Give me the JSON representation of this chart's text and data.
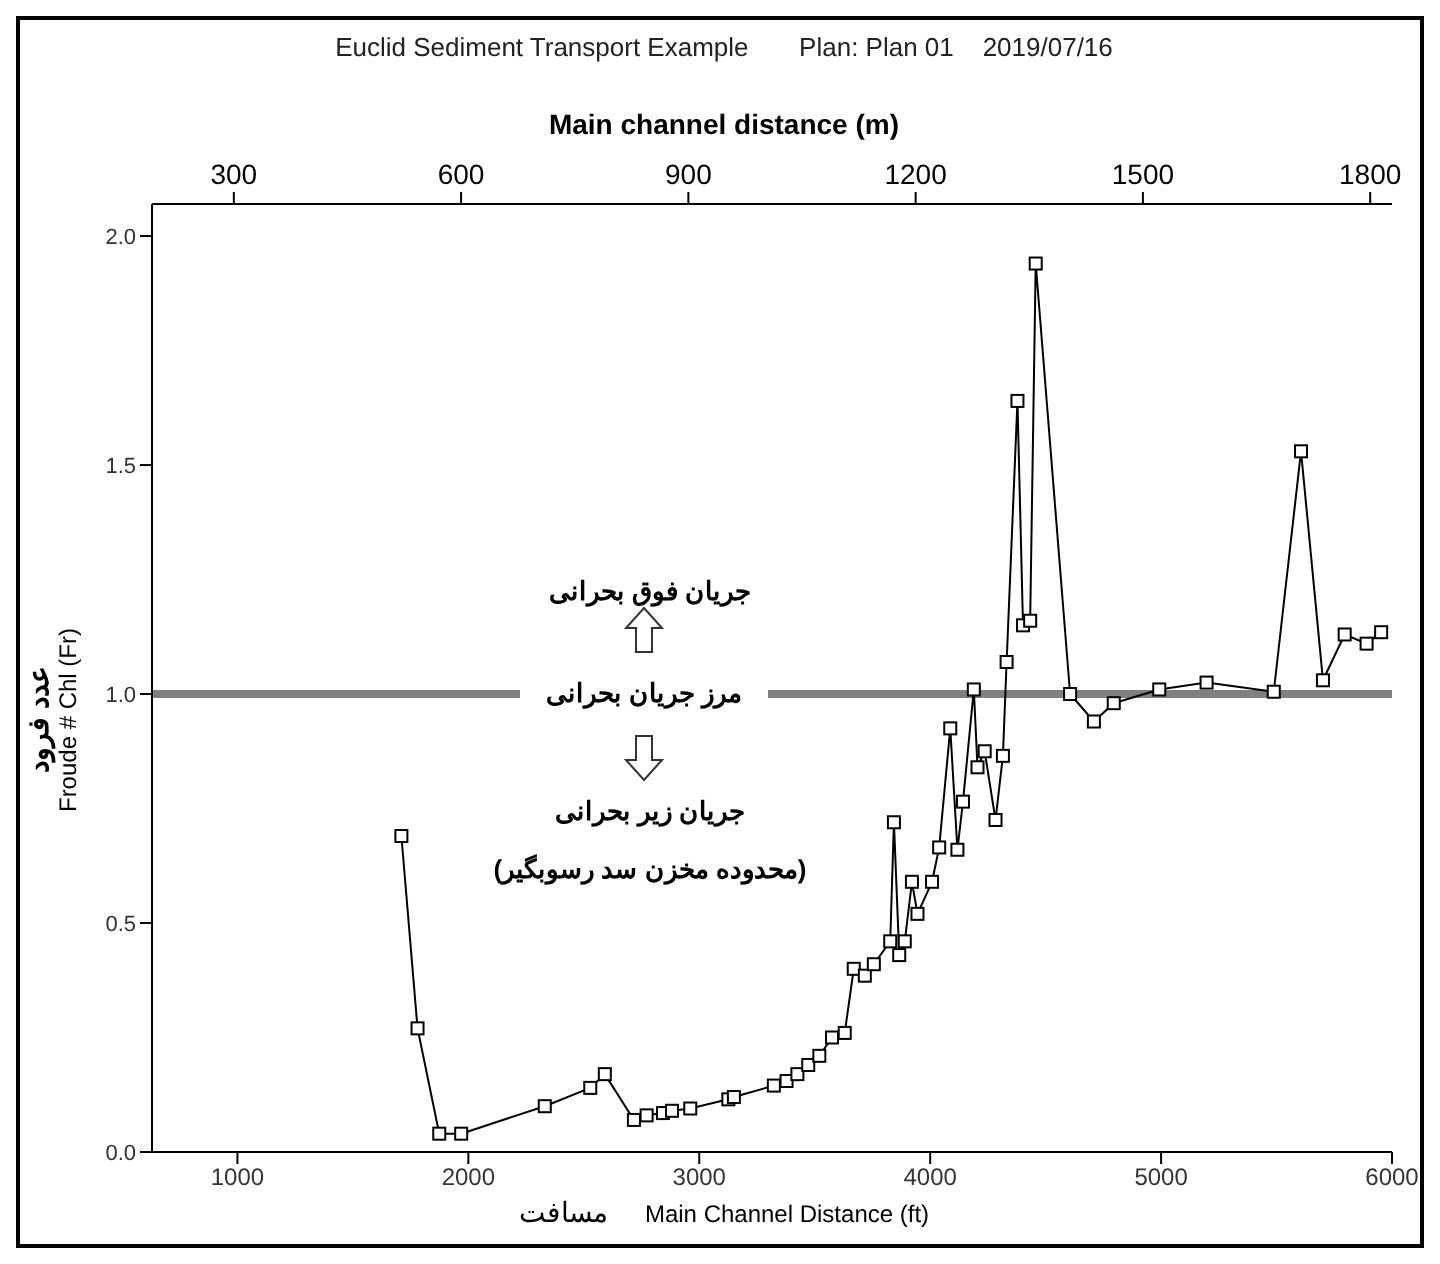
{
  "chart_data": {
    "type": "line",
    "title": "Euclid Sediment Transport Example",
    "subtitle": "Plan: Plan 01    2019/07/16",
    "xlabel": "Main Channel Distance (ft)",
    "ylabel": "Froude # Chl (Fr)",
    "x2label": "Main channel distance (m)",
    "annotations": [
      "جریان فوق بحرانی",
      "جریان زیر بحرانی",
      "(محدوده مخزن سد رسوبگیر)",
      "عدد فرود",
      "مسافت"
    ],
    "x": [
      1710,
      1780,
      1874,
      1969,
      2331,
      2528,
      2591,
      2717,
      2772,
      2843,
      2882,
      2961,
      3126,
      3150,
      3323,
      3378,
      3425,
      3472,
      3520,
      3575,
      3630,
      3669,
      3717,
      3756,
      3827,
      3843,
      3866,
      3890,
      3921,
      3945,
      4008,
      4039,
      4087,
      4118,
      4142,
      4189,
      4205,
      4236,
      4283,
      4315,
      4331,
      4378,
      4402,
      4433,
      4457,
      4606,
      4709,
      4795,
      4992,
      5197,
      5488,
      5606,
      5701,
      5795,
      5890,
      5953
    ],
    "series": [
      {
        "color": "#000000",
        "values": [
          0.69,
          0.27,
          0.04,
          0.04,
          0.1,
          0.14,
          0.17,
          0.07,
          0.08,
          0.085,
          0.09,
          0.095,
          0.115,
          0.12,
          0.145,
          0.155,
          0.17,
          0.19,
          0.21,
          0.25,
          0.26,
          0.4,
          0.385,
          0.41,
          0.46,
          0.72,
          0.43,
          0.46,
          0.59,
          0.52,
          0.59,
          0.665,
          0.925,
          0.66,
          0.765,
          1.01,
          0.84,
          0.875,
          0.725,
          0.865,
          1.07,
          1.64,
          1.15,
          1.16,
          1.94,
          1.0,
          0.94,
          0.98,
          1.01,
          1.025,
          1.005,
          1.53,
          1.03,
          1.13,
          1.11,
          1.135
        ]
      }
    ],
    "xlim": [
      630,
      6000
    ],
    "xticks": [
      1000,
      2000,
      3000,
      4000,
      5000,
      6000
    ],
    "x2lim": [
      192,
      1828.8
    ],
    "x2ticks": [
      300,
      600,
      900,
      1200,
      1500,
      1800
    ],
    "ylim": [
      0,
      2.07
    ],
    "yticks": [
      {
        "value": 0,
        "label": "0.0"
      },
      {
        "value": 0.5,
        "label": "0.5"
      },
      {
        "value": 1,
        "label": "1.0"
      },
      {
        "value": 1.5,
        "label": "1.5"
      },
      {
        "value": 2,
        "label": "2.0"
      }
    ],
    "ref_lines": [
      {
        "axis": "y",
        "value": 1,
        "label": "مرز جریان بحرانی",
        "color": "#808080"
      }
    ],
    "marker": "square",
    "line_style": "solid"
  }
}
